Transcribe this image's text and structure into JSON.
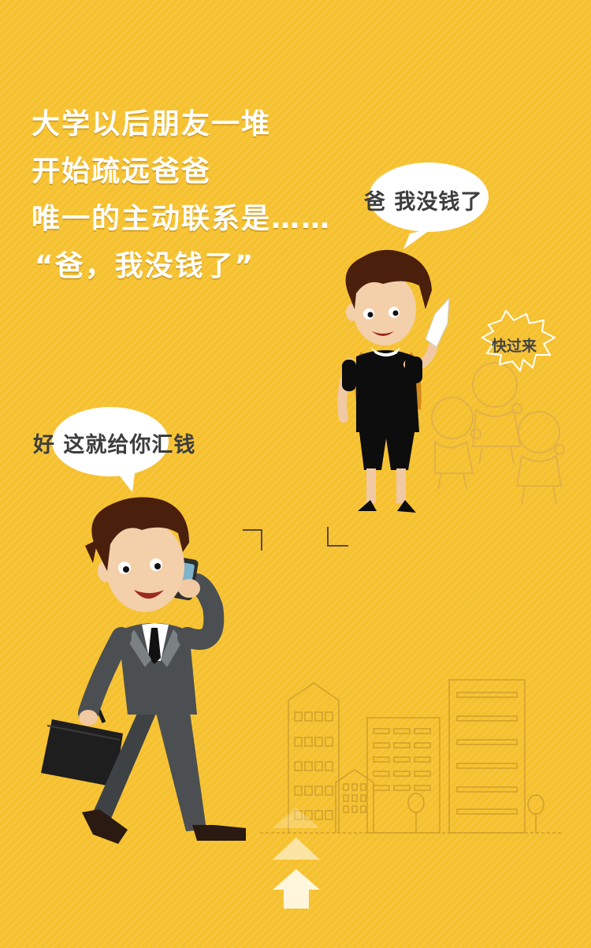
{
  "headline": {
    "lines": [
      "大学以后朋友一堆",
      "开始疏远爸爸",
      "唯一的主动联系是……",
      "“爸，我没钱了”"
    ]
  },
  "bubbles": {
    "son": "爸 我没钱了",
    "father": "好 这就给你汇钱",
    "friends": "快过来"
  },
  "colors": {
    "background": "#f6c12f",
    "headline_text": "#ffffff",
    "bubble_text": "#3d3d3d",
    "suit": "#4b4f52",
    "hair": "#4a1f0c"
  },
  "icons": [
    "scroll-up-arrow-icon"
  ]
}
